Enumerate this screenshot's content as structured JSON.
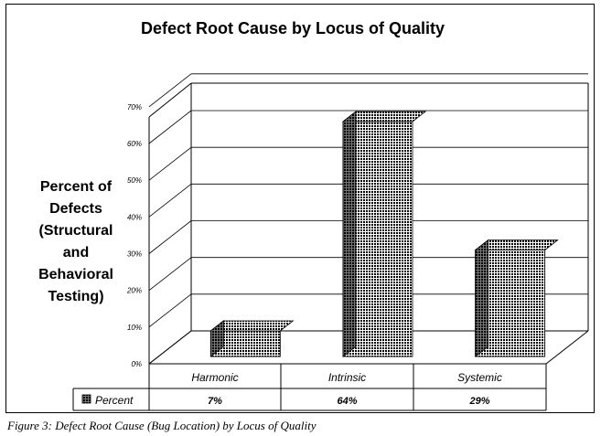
{
  "chart_data": {
    "type": "bar",
    "title": "Defect Root Cause by Locus of Quality",
    "ylabel_lines": [
      "Percent of",
      "Defects",
      "(Structural",
      "and",
      "Behavioral",
      "Testing)"
    ],
    "categories": [
      "Harmonic",
      "Intrinsic",
      "Systemic"
    ],
    "series": [
      {
        "name": "Percent",
        "values": [
          7,
          64,
          29
        ],
        "value_labels": [
          "7%",
          "64%",
          "29%"
        ]
      }
    ],
    "y_ticks": [
      "0%",
      "10%",
      "20%",
      "30%",
      "40%",
      "50%",
      "60%",
      "70%"
    ],
    "ylim": [
      0,
      70
    ],
    "grid": true,
    "legend": "data-table"
  },
  "caption": "Figure 3: Defect Root Cause (Bug Location) by Locus of Quality"
}
